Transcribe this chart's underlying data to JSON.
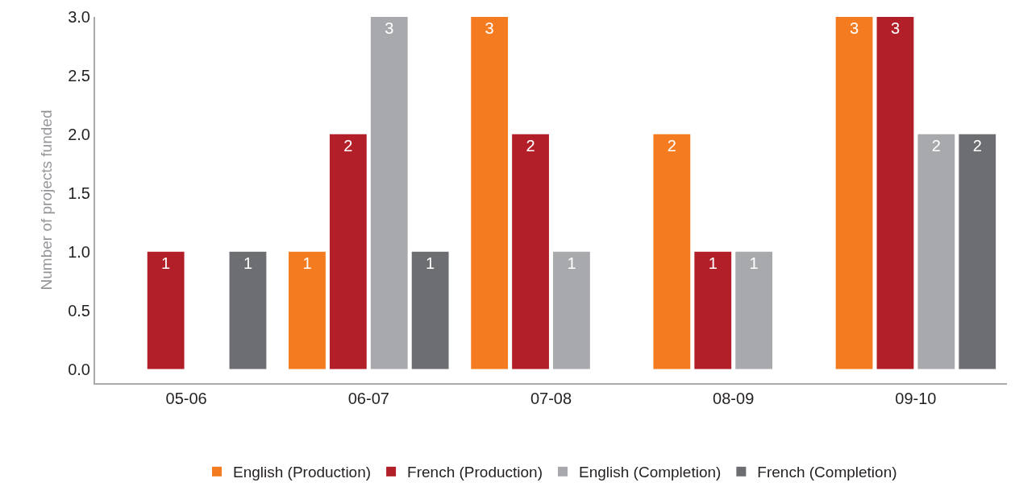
{
  "chart_data": {
    "type": "bar",
    "ylabel": "Number of projects funded",
    "categories": [
      "05-06",
      "06-07",
      "07-08",
      "08-09",
      "09-10"
    ],
    "series": [
      {
        "name": "English (Production)",
        "color": "#f47b20",
        "values": [
          0,
          1,
          3,
          2,
          3
        ],
        "value_labels": [
          null,
          "1",
          "3",
          "2",
          "3"
        ]
      },
      {
        "name": "French (Production)",
        "color": "#b31f29",
        "values": [
          1,
          2,
          2,
          1,
          3
        ],
        "value_labels": [
          "1",
          "2",
          "2",
          "1",
          "3"
        ]
      },
      {
        "name": "English (Completion)",
        "color": "#a7a9ac",
        "values": [
          0,
          3,
          1,
          1,
          2
        ],
        "value_labels": [
          null,
          "3",
          "1",
          "1",
          "2"
        ]
      },
      {
        "name": "French (Completion)",
        "color": "#6d6e71",
        "values": [
          1,
          1,
          0,
          0,
          2
        ],
        "value_labels": [
          "1",
          "1",
          null,
          null,
          "2"
        ]
      }
    ],
    "ylim": [
      -0.12,
      3.0
    ],
    "yticks": [
      {
        "value": 0,
        "label": "0.0"
      },
      {
        "value": 0.5,
        "label": "0.5"
      },
      {
        "value": 1,
        "label": "1.0"
      },
      {
        "value": 1.5,
        "label": "1.5"
      },
      {
        "value": 2,
        "label": "2.0"
      },
      {
        "value": 2.5,
        "label": "2.5"
      },
      {
        "value": 3,
        "label": "3.0"
      }
    ],
    "legend": "bottom"
  }
}
